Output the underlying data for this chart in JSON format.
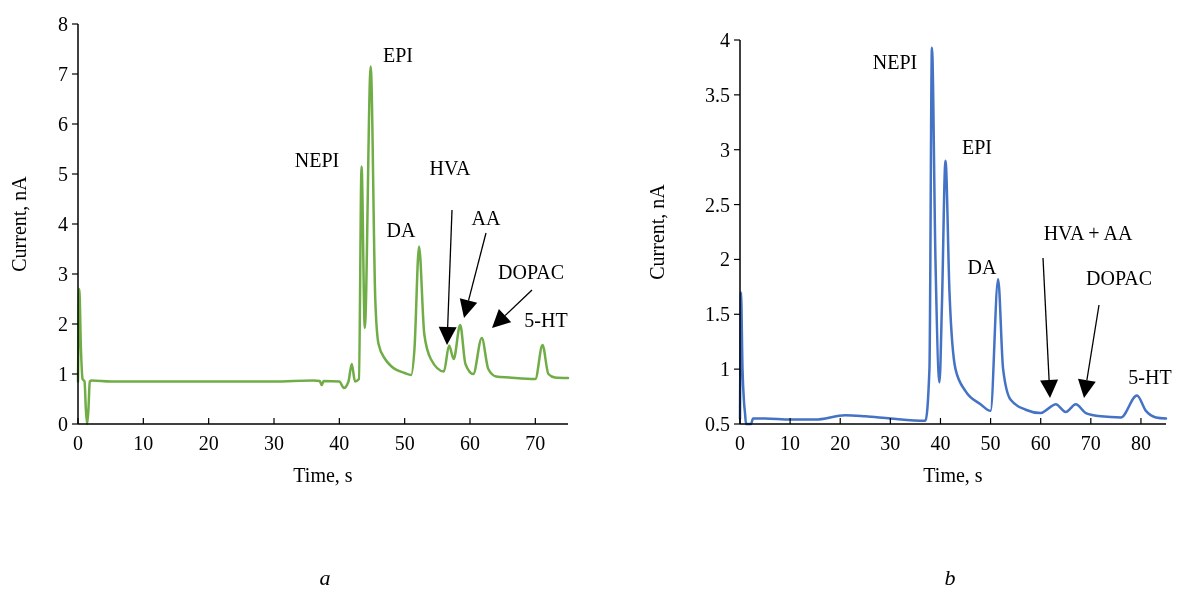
{
  "chart_data": [
    {
      "type": "line",
      "title": "a",
      "xlabel": "Time, s",
      "ylabel": "Current, nA",
      "xlim": [
        0,
        75
      ],
      "ylim": [
        0,
        8
      ],
      "xticks": [
        0,
        10,
        20,
        30,
        40,
        50,
        60,
        70
      ],
      "yticks": [
        0,
        1,
        2,
        3,
        4,
        5,
        6,
        7,
        8
      ],
      "grid": false,
      "marker": "none",
      "line_style": "solid",
      "series": [
        {
          "color": "#70ad47",
          "x": [
            0,
            0.2,
            0.45,
            0.7,
            1.0,
            1.2,
            1.4,
            1.6,
            1.8,
            2.1,
            5,
            10,
            20,
            30,
            36,
            37,
            37.3,
            37.6,
            40,
            40.7,
            41.4,
            41.9,
            42.4,
            43,
            43.4,
            43.9,
            44.8,
            45.5,
            46,
            47,
            48,
            50,
            51,
            51.5,
            52.2,
            53,
            54,
            56,
            56.8,
            57.5,
            58.5,
            59.3,
            60.5,
            61.8,
            62.8,
            64,
            66,
            70,
            71.1,
            72,
            73,
            75
          ],
          "values": [
            0.85,
            2.7,
            1.5,
            0.9,
            0.85,
            0.3,
            0,
            0.3,
            0.85,
            0.87,
            0.85,
            0.85,
            0.85,
            0.85,
            0.87,
            0.86,
            0.78,
            0.86,
            0.85,
            0.72,
            0.85,
            1.2,
            0.85,
            0.9,
            5.15,
            1.92,
            7.15,
            2.5,
            1.6,
            1.3,
            1.15,
            1.02,
            0.98,
            1.5,
            3.55,
            1.8,
            1.3,
            1.05,
            1.57,
            1.3,
            1.98,
            1.2,
            1.0,
            1.72,
            1.1,
            0.95,
            0.93,
            0.9,
            1.58,
            1.0,
            0.93,
            0.92
          ]
        }
      ],
      "annotations": [
        "NEPI",
        "EPI",
        "DA",
        "HVA",
        "AA",
        "DOPAC",
        "5-HT"
      ]
    },
    {
      "type": "line",
      "title": "b",
      "xlabel": "Time, s",
      "ylabel": "Current, nA",
      "xlim": [
        0,
        85
      ],
      "ylim": [
        0.5,
        4
      ],
      "xticks": [
        0,
        10,
        20,
        30,
        40,
        50,
        60,
        70,
        80
      ],
      "yticks": [
        0.5,
        1,
        1.5,
        2,
        2.5,
        3,
        3.5,
        4
      ],
      "grid": false,
      "marker": "none",
      "line_style": "solid",
      "series": [
        {
          "color": "#4472c4",
          "x": [
            0,
            0.2,
            0.5,
            0.8,
            1.0,
            1.2,
            1.6,
            2.2,
            2.6,
            5,
            10,
            15,
            21,
            25,
            30,
            37,
            37.8,
            38.3,
            39,
            39.8,
            40.3,
            41,
            41.8,
            43,
            45,
            48,
            50,
            51.5,
            52.5,
            54,
            57,
            60,
            61.5,
            63,
            65,
            67,
            69,
            72,
            76,
            79.2,
            81,
            83,
            85
          ],
          "values": [
            0.55,
            1.7,
            1.0,
            0.7,
            0.6,
            0.5,
            0.5,
            0.5,
            0.55,
            0.55,
            0.54,
            0.54,
            0.58,
            0.57,
            0.55,
            0.53,
            1.0,
            3.93,
            2.0,
            0.88,
            1.6,
            2.9,
            1.7,
            1.0,
            0.8,
            0.68,
            0.62,
            1.82,
            1.0,
            0.72,
            0.63,
            0.6,
            0.64,
            0.68,
            0.61,
            0.68,
            0.6,
            0.57,
            0.56,
            0.76,
            0.62,
            0.56,
            0.55
          ]
        }
      ],
      "annotations": [
        "NEPI",
        "EPI",
        "DA",
        "HVA + AA",
        "DOPAC",
        "5-HT"
      ]
    }
  ]
}
